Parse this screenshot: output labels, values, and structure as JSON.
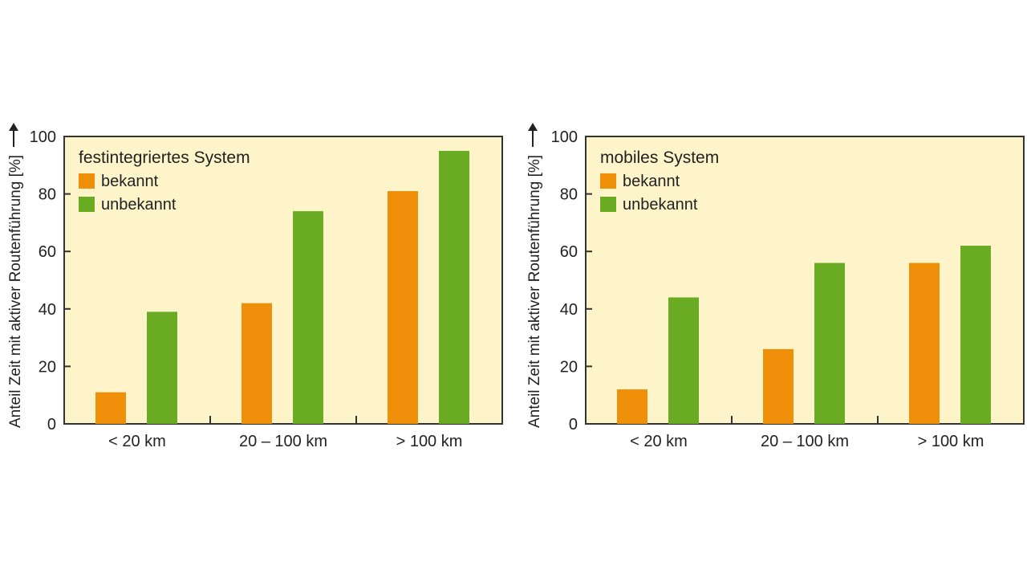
{
  "colors": {
    "plot_background": "#fdf5c9",
    "frame": "#333333",
    "bekannt": "#f0900a",
    "unbekannt": "#6aab24",
    "text": "#222222"
  },
  "chart_data": [
    {
      "type": "bar",
      "title": "festintegriertes System",
      "ylabel": "Anteil Zeit mit aktiver Routenführung [%]",
      "xlabel": "",
      "categories": [
        "< 20 km",
        "20 – 100 km",
        "> 100 km"
      ],
      "series": [
        {
          "name": "bekannt",
          "color": "#f0900a",
          "values": [
            11,
            42,
            81
          ]
        },
        {
          "name": "unbekannt",
          "color": "#6aab24",
          "values": [
            39,
            74,
            95
          ]
        }
      ],
      "ylim": [
        0,
        100
      ],
      "yticks": [
        "0",
        "20",
        "40",
        "60",
        "80",
        "100"
      ],
      "legend": "top-left",
      "grid": false
    },
    {
      "type": "bar",
      "title": "mobiles System",
      "ylabel": "Anteil Zeit mit aktiver Routenführung [%]",
      "xlabel": "",
      "categories": [
        "< 20 km",
        "20 – 100 km",
        "> 100 km"
      ],
      "series": [
        {
          "name": "bekannt",
          "color": "#f0900a",
          "values": [
            12,
            26,
            56
          ]
        },
        {
          "name": "unbekannt",
          "color": "#6aab24",
          "values": [
            44,
            56,
            62
          ]
        }
      ],
      "ylim": [
        0,
        100
      ],
      "yticks": [
        "0",
        "20",
        "40",
        "60",
        "80",
        "100"
      ],
      "legend": "top-left",
      "grid": false
    }
  ]
}
